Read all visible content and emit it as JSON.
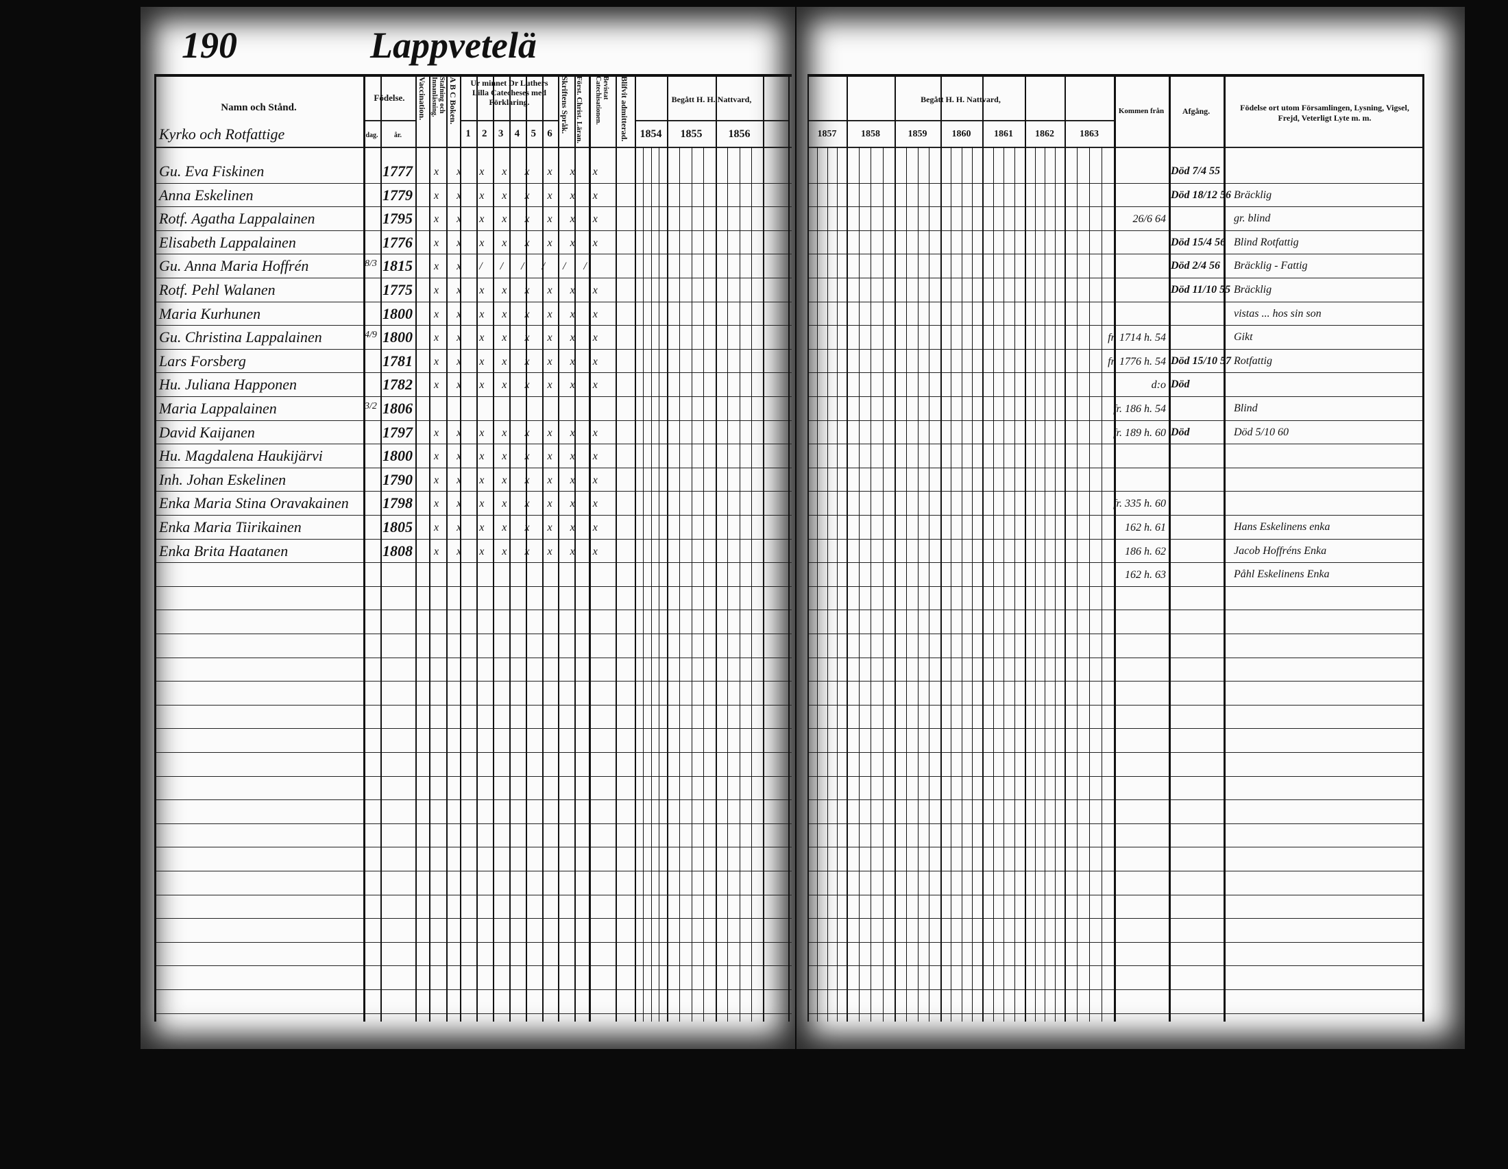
{
  "header": {
    "page_number": "190",
    "village": "Lappvetelä",
    "section": "Kyrko och Rotfattige"
  },
  "columns": {
    "name": "Namn och Stånd.",
    "birth": "Födelse.",
    "birth_day": "dag.",
    "birth_year": "år.",
    "vaccination": "Vaccination.",
    "spelling": "Stafning och Innanläsning.",
    "abc": "A B C Boken.",
    "catechism": "Ur minnet Dr Luthers Lilla Catecheses med Förklaring.",
    "catechism_parts": [
      "1",
      "2",
      "3",
      "4",
      "5",
      "6"
    ],
    "scripture": "Skriftens Språk.",
    "first_christ": "Först. Christ. Läran.",
    "proof": "Bevistat Catechisationen.",
    "admitted": "Blifvit admitterad.",
    "communion": "Begått H. H. Nattvard,",
    "years_left": [
      "1854",
      "1855",
      "1856"
    ],
    "years_right": [
      "1857",
      "1858",
      "1859",
      "1860",
      "1861",
      "1862",
      "1863"
    ],
    "arrived_from": "Kommen från",
    "departure": "Afgång.",
    "remarks": "Födelse ort utom Församlingen, Lysning, Vigsel, Frejd, Veterligt Lyte m. m."
  },
  "rows": [
    {
      "name": "Gu. Eva Fiskinen",
      "day": "",
      "year": "1777",
      "marks": "x x x x x x x x",
      "arrived": "",
      "departure": "Död 7/4 55",
      "remark": ""
    },
    {
      "name": "Anna Eskelinen",
      "day": "",
      "year": "1779",
      "marks": "x x x x x x x x",
      "arrived": "",
      "departure": "Död 18/12 56",
      "remark": "Bräcklig"
    },
    {
      "name": "Rotf. Agatha Lappalainen",
      "day": "",
      "year": "1795",
      "marks": "x x x x x x x x",
      "arrived": "26/6 64",
      "departure": "",
      "remark": "gr. blind"
    },
    {
      "name": "Elisabeth Lappalainen",
      "day": "",
      "year": "1776",
      "marks": "x x x x x x x x",
      "arrived": "",
      "departure": "Död 15/4 56",
      "remark": "Blind Rotfattig"
    },
    {
      "name": "Gu. Anna Maria Hoffrén",
      "day": "8/3",
      "year": "1815",
      "marks": "x x / / / / / /",
      "arrived": "",
      "departure": "Död 2/4 56",
      "remark": "Bräcklig - Fattig"
    },
    {
      "name": "Rotf. Pehl Walanen",
      "day": "",
      "year": "1775",
      "marks": "x x x x x x x x",
      "arrived": "",
      "departure": "Död 11/10 55",
      "remark": "Bräcklig"
    },
    {
      "name": "Maria Kurhunen",
      "day": "",
      "year": "1800",
      "marks": "x x x x x x x x",
      "arrived": "",
      "departure": "",
      "remark": "vistas ... hos sin son"
    },
    {
      "name": "Gu. Christina Lappalainen",
      "day": "4/9",
      "year": "1800",
      "marks": "x x x x x x x x",
      "arrived": "fr. 1714 h. 54",
      "departure": "",
      "remark": "Gikt"
    },
    {
      "name": "Lars Forsberg",
      "day": "",
      "year": "1781",
      "marks": "x x x x x x x x",
      "arrived": "fr. 1776 h. 54",
      "departure": "Död 15/10 57",
      "remark": "Rotfattig"
    },
    {
      "name": "Hu. Juliana Happonen",
      "day": "",
      "year": "1782",
      "marks": "x x x x x x x x",
      "arrived": "d:o",
      "departure": "Död",
      "remark": ""
    },
    {
      "name": "Maria Lappalainen",
      "day": "3/2",
      "year": "1806",
      "marks": "",
      "arrived": "fr. 186 h. 54",
      "departure": "",
      "remark": "Blind"
    },
    {
      "name": "David Kaijanen",
      "day": "",
      "year": "1797",
      "marks": "x x x x x x x x",
      "arrived": "fr. 189 h. 60",
      "departure": "Död",
      "remark": "Död 5/10 60"
    },
    {
      "name": "Hu. Magdalena Haukijärvi",
      "day": "",
      "year": "1800",
      "marks": "x x x x x x x x",
      "arrived": "",
      "departure": "",
      "remark": ""
    },
    {
      "name": "Inh. Johan Eskelinen",
      "day": "",
      "year": "1790",
      "marks": "x x x x x x x x",
      "arrived": "",
      "departure": "",
      "remark": ""
    },
    {
      "name": "Enka Maria Stina Oravakainen",
      "day": "",
      "year": "1798",
      "marks": "x x x x x x x x",
      "arrived": "fr. 335 h. 60",
      "departure": "",
      "remark": ""
    },
    {
      "name": "Enka Maria Tiirikainen",
      "day": "",
      "year": "1805",
      "marks": "x x x x x x x x",
      "arrived": "162 h. 61",
      "departure": "",
      "remark": "Hans Eskelinens enka"
    },
    {
      "name": "Enka Brita Haatanen",
      "day": "",
      "year": "1808",
      "marks": "x x x x x x x x",
      "arrived": "186 h. 62",
      "departure": "",
      "remark": "Jacob Hoffréns Enka"
    },
    {
      "name": "",
      "day": "",
      "year": "",
      "marks": "",
      "arrived": "162 h. 63",
      "departure": "",
      "remark": "Påhl Eskelinens Enka"
    }
  ]
}
